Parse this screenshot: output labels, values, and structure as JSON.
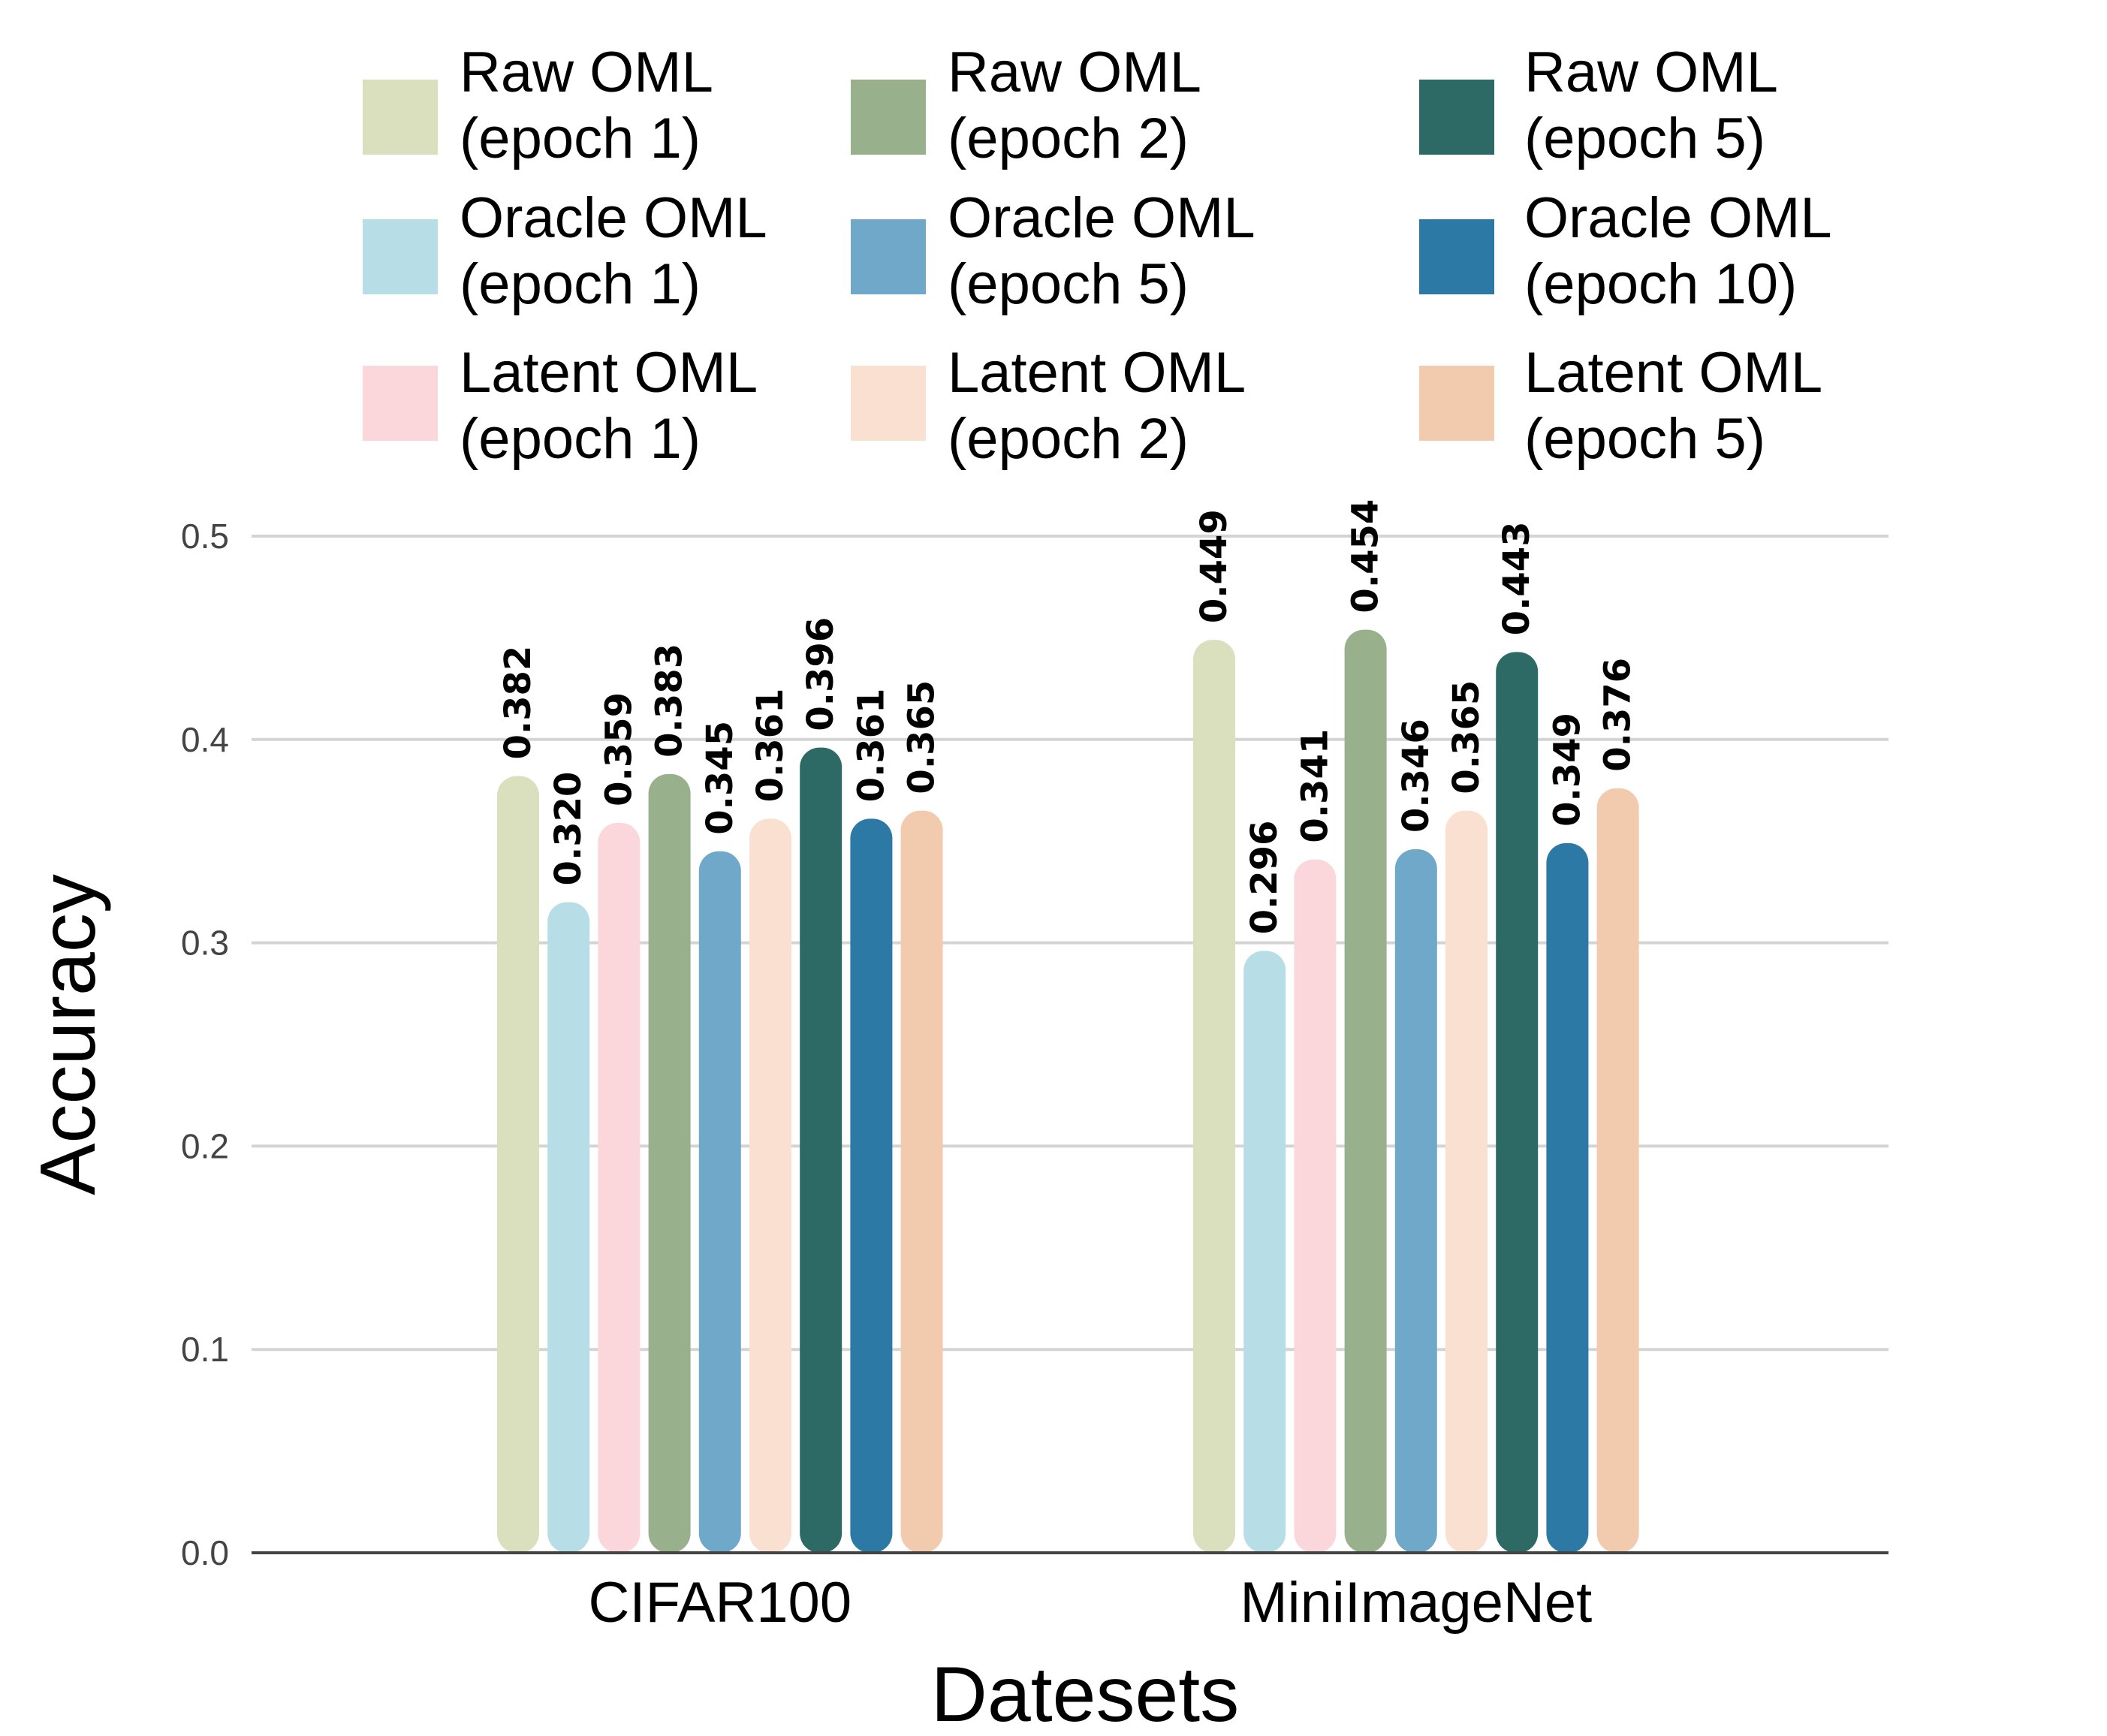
{
  "chart_data": {
    "type": "bar",
    "title": "",
    "xlabel": "Datesets",
    "ylabel": "Accuracy",
    "ylim": [
      0,
      0.5
    ],
    "yticks": [
      "0.0",
      "0.1",
      "0.2",
      "0.3",
      "0.4",
      "0.5"
    ],
    "grid": true,
    "legend_position": "top",
    "categories": [
      "CIFAR100",
      "MiniImageNet"
    ],
    "series": [
      {
        "name": [
          "Raw OML",
          "(epoch 1)"
        ],
        "color": "#dadfbe",
        "values": [
          0.382,
          0.449
        ],
        "labels": [
          "0.382",
          "0.449"
        ]
      },
      {
        "name": [
          "Oracle OML",
          "(epoch 1)"
        ],
        "color": "#b7dde6",
        "values": [
          0.32,
          0.296
        ],
        "labels": [
          "0.320",
          "0.296"
        ]
      },
      {
        "name": [
          "Latent OML",
          "(epoch 1)"
        ],
        "color": "#fbd7dc",
        "values": [
          0.359,
          0.341
        ],
        "labels": [
          "0.359",
          "0.341"
        ]
      },
      {
        "name": [
          "Raw OML",
          "(epoch 2)"
        ],
        "color": "#98b08c",
        "values": [
          0.383,
          0.454
        ],
        "labels": [
          "0.383",
          "0.454"
        ]
      },
      {
        "name": [
          "Oracle OML",
          "(epoch 5)"
        ],
        "color": "#70a8ca",
        "values": [
          0.345,
          0.346
        ],
        "labels": [
          "0.345",
          "0.346"
        ]
      },
      {
        "name": [
          "Latent OML",
          "(epoch 2)"
        ],
        "color": "#fae0d0",
        "values": [
          0.361,
          0.365
        ],
        "labels": [
          "0.361",
          "0.365"
        ]
      },
      {
        "name": [
          "Raw OML",
          "(epoch 5)"
        ],
        "color": "#2d6a66",
        "values": [
          0.396,
          0.443
        ],
        "labels": [
          "0.396",
          "0.443"
        ]
      },
      {
        "name": [
          "Oracle OML",
          "(epoch 10)"
        ],
        "color": "#2c79a5",
        "values": [
          0.361,
          0.349
        ],
        "labels": [
          "0.361",
          "0.349"
        ]
      },
      {
        "name": [
          "Latent OML",
          "(epoch 5)"
        ],
        "color": "#f2cbae",
        "values": [
          0.365,
          0.376
        ],
        "labels": [
          "0.365",
          "0.376"
        ]
      }
    ]
  }
}
